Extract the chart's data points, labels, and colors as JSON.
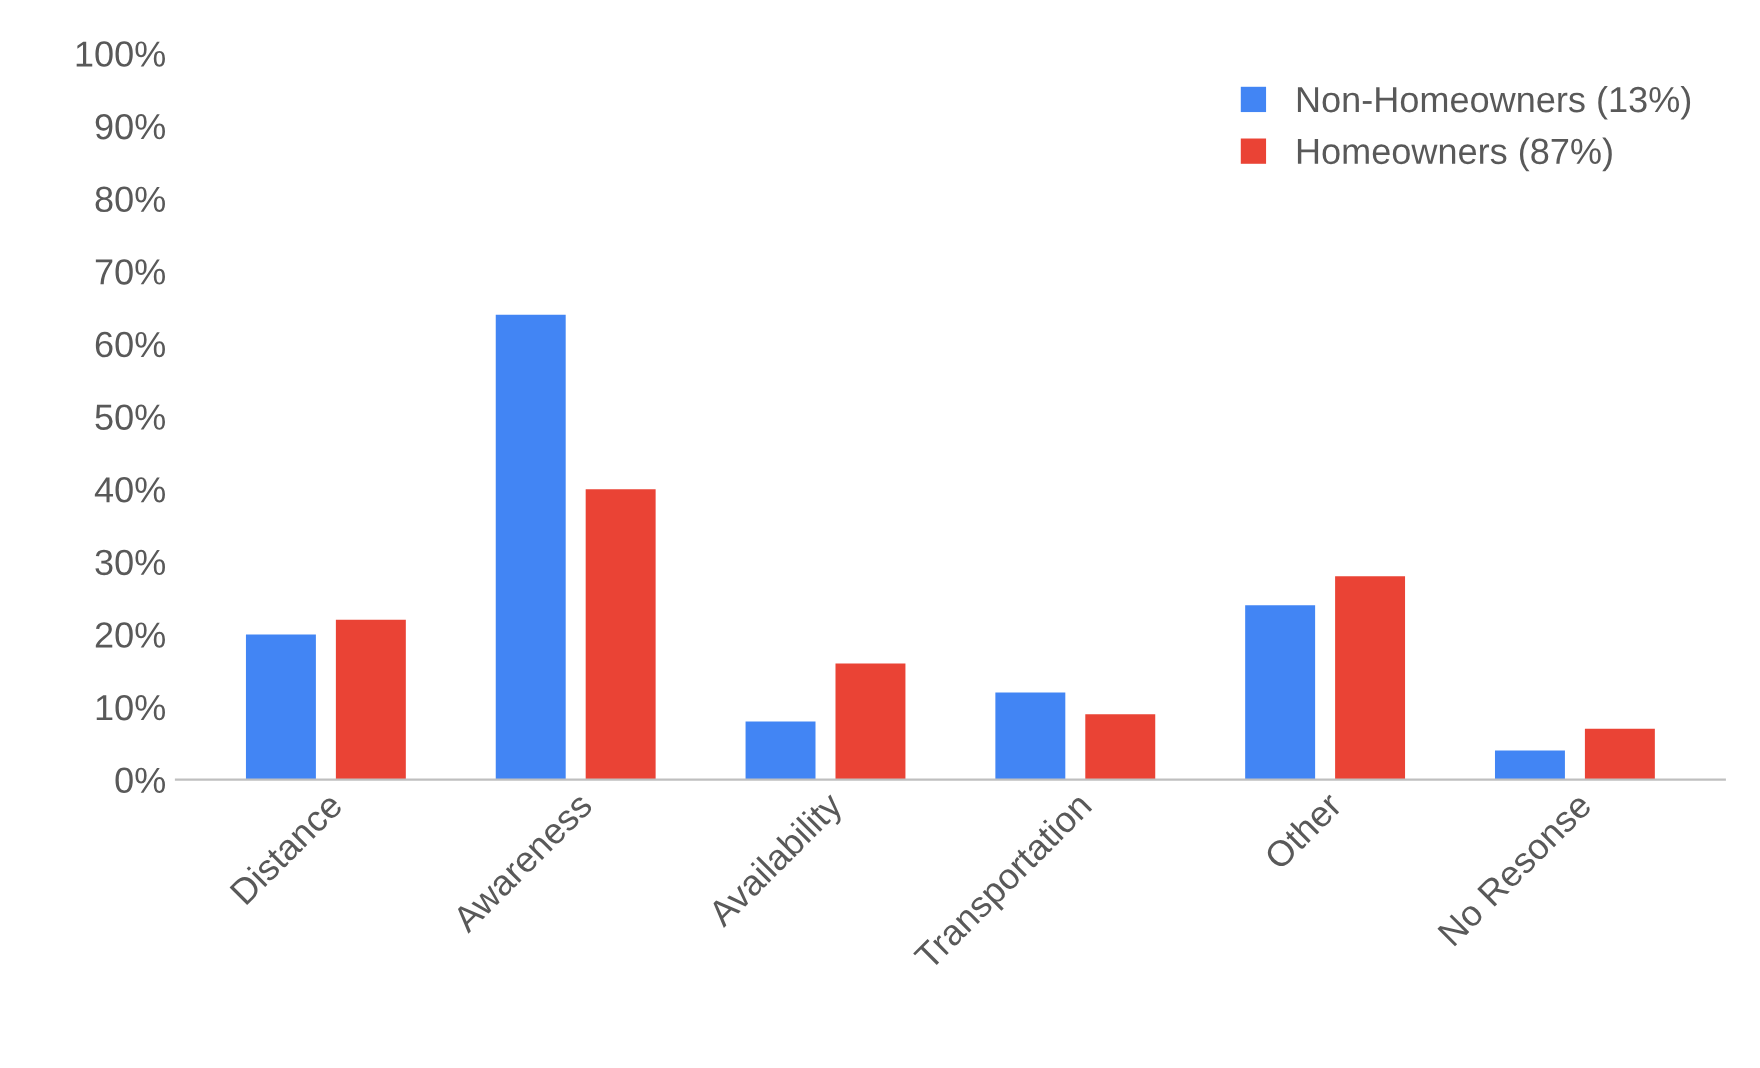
{
  "chart_data": {
    "type": "bar",
    "categories": [
      "Distance",
      "Awareness",
      "Availability",
      "Transportation",
      "Other",
      "No Resonse"
    ],
    "series": [
      {
        "name": "Non-Homeowners (13%)",
        "color": "#4285f4",
        "values": [
          20,
          64,
          8,
          12,
          24,
          4
        ]
      },
      {
        "name": "Homeowners (87%)",
        "color": "#ea4335",
        "values": [
          22,
          40,
          16,
          9,
          28,
          7
        ]
      }
    ],
    "ylim": [
      0,
      100
    ],
    "yticks": [
      {
        "value": 0,
        "label": "0%"
      },
      {
        "value": 10,
        "label": "10%"
      },
      {
        "value": 20,
        "label": "20%"
      },
      {
        "value": 30,
        "label": "30%"
      },
      {
        "value": 40,
        "label": "40%"
      },
      {
        "value": 50,
        "label": "50%"
      },
      {
        "value": 60,
        "label": "60%"
      },
      {
        "value": 70,
        "label": "70%"
      },
      {
        "value": 80,
        "label": "80%"
      },
      {
        "value": 90,
        "label": "90%"
      },
      {
        "value": 100,
        "label": "100%"
      }
    ],
    "grid": false,
    "legend": "top right"
  }
}
